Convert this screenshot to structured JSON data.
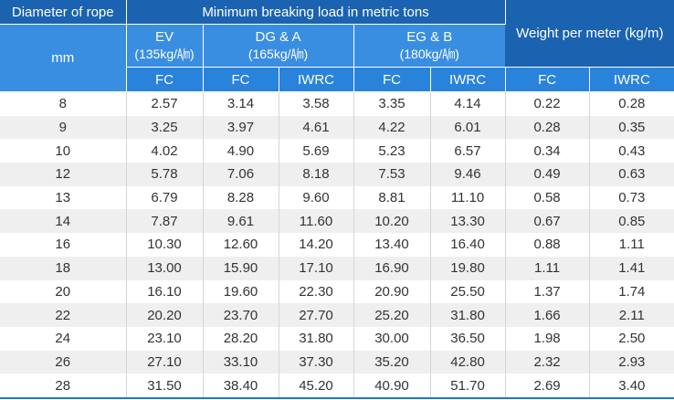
{
  "header": {
    "diameter_label": "Diameter of rope",
    "diameter_unit": "mm",
    "breaking_load_label": "Minimum breaking load in metric tons",
    "weight_label": "Weight per meter (kg/m)",
    "groups": [
      {
        "name": "EV",
        "grade": "(135kg/㏟)"
      },
      {
        "name": "DG & A",
        "grade": "(165kg/㏟)"
      },
      {
        "name": "EG & B",
        "grade": "(180kg/㏟)"
      }
    ],
    "sub_columns": [
      "FC",
      "FC",
      "IWRC",
      "FC",
      "IWRC",
      "FC",
      "IWRC"
    ]
  },
  "rows": [
    [
      "8",
      "2.57",
      "3.14",
      "3.58",
      "3.35",
      "4.14",
      "0.22",
      "0.28"
    ],
    [
      "9",
      "3.25",
      "3.97",
      "4.61",
      "4.22",
      "6.01",
      "0.28",
      "0.35"
    ],
    [
      "10",
      "4.02",
      "4.90",
      "5.69",
      "5.23",
      "6.57",
      "0.34",
      "0.43"
    ],
    [
      "12",
      "5.78",
      "7.06",
      "8.18",
      "7.53",
      "9.46",
      "0.49",
      "0.63"
    ],
    [
      "13",
      "6.79",
      "8.28",
      "9.60",
      "8.81",
      "11.10",
      "0.58",
      "0.73"
    ],
    [
      "14",
      "7.87",
      "9.61",
      "11.60",
      "10.20",
      "13.30",
      "0.67",
      "0.85"
    ],
    [
      "16",
      "10.30",
      "12.60",
      "14.20",
      "13.40",
      "16.40",
      "0.88",
      "1.11"
    ],
    [
      "18",
      "13.00",
      "15.90",
      "17.10",
      "16.90",
      "19.80",
      "1.11",
      "1.41"
    ],
    [
      "20",
      "16.10",
      "19.60",
      "22.30",
      "20.90",
      "25.50",
      "1.37",
      "1.74"
    ],
    [
      "22",
      "20.20",
      "23.70",
      "27.70",
      "25.20",
      "31.80",
      "1.66",
      "2.11"
    ],
    [
      "24",
      "23.10",
      "28.20",
      "31.80",
      "30.00",
      "36.50",
      "1.98",
      "2.50"
    ],
    [
      "26",
      "27.10",
      "33.10",
      "37.30",
      "35.20",
      "42.80",
      "2.32",
      "2.93"
    ],
    [
      "28",
      "31.50",
      "38.40",
      "45.20",
      "40.90",
      "51.70",
      "2.69",
      "3.40"
    ]
  ]
}
